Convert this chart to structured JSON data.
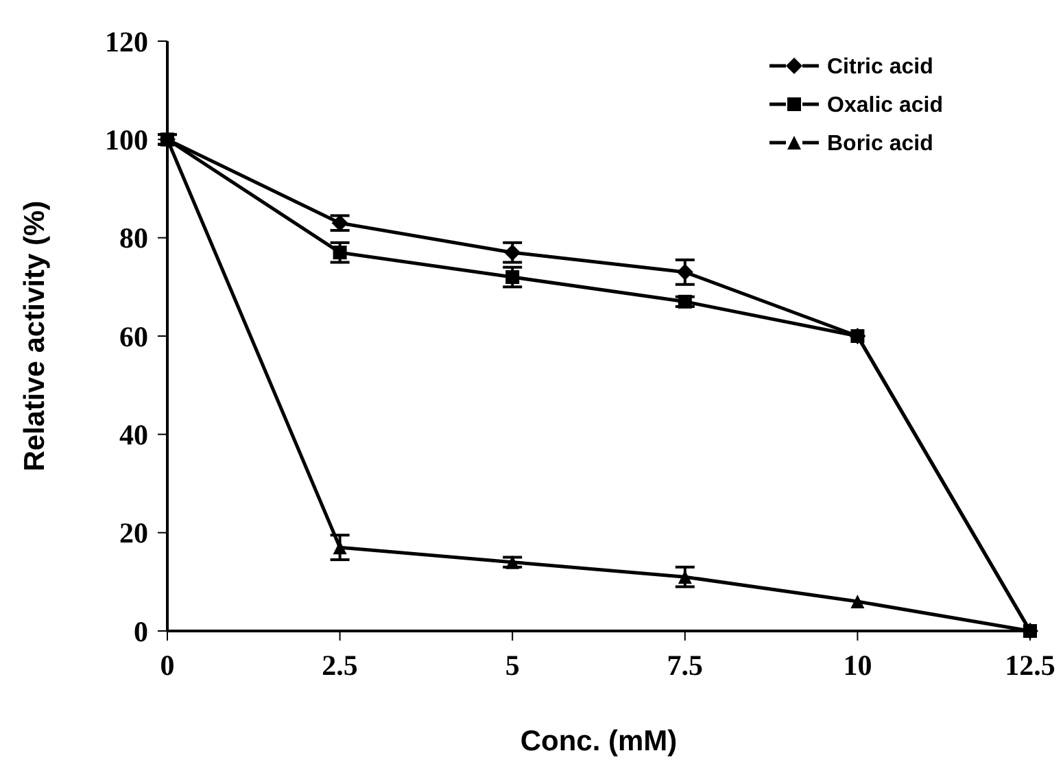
{
  "chart_data": {
    "type": "line",
    "xlabel": "Conc. (mM)",
    "ylabel": "Relative activity (%)",
    "x": [
      0,
      2.5,
      5,
      7.5,
      10,
      12.5
    ],
    "series": [
      {
        "name": "Citric acid",
        "color": "#000000",
        "marker": "diamond",
        "values": [
          100,
          83,
          77,
          73,
          60,
          0
        ],
        "errors": [
          1,
          1.5,
          2,
          2.5,
          null,
          null
        ]
      },
      {
        "name": "Oxalic acid",
        "color": "#000000",
        "marker": "square",
        "values": [
          100,
          77,
          72,
          67,
          60,
          0
        ],
        "errors": [
          1,
          2,
          2,
          1,
          null,
          null
        ]
      },
      {
        "name": "Boric acid",
        "color": "#000000",
        "marker": "triangle",
        "values": [
          100,
          17,
          14,
          11,
          6,
          0
        ],
        "errors": [
          null,
          2.5,
          1,
          2,
          null,
          null
        ]
      }
    ],
    "xlim": [
      0,
      12.5
    ],
    "xticks": [
      0,
      2.5,
      5,
      7.5,
      10,
      12.5
    ],
    "ylim": [
      0,
      120
    ],
    "yticks": [
      0,
      20,
      40,
      60,
      80,
      100,
      120
    ],
    "grid": false,
    "legend": "top right",
    "line_style": "solid"
  }
}
